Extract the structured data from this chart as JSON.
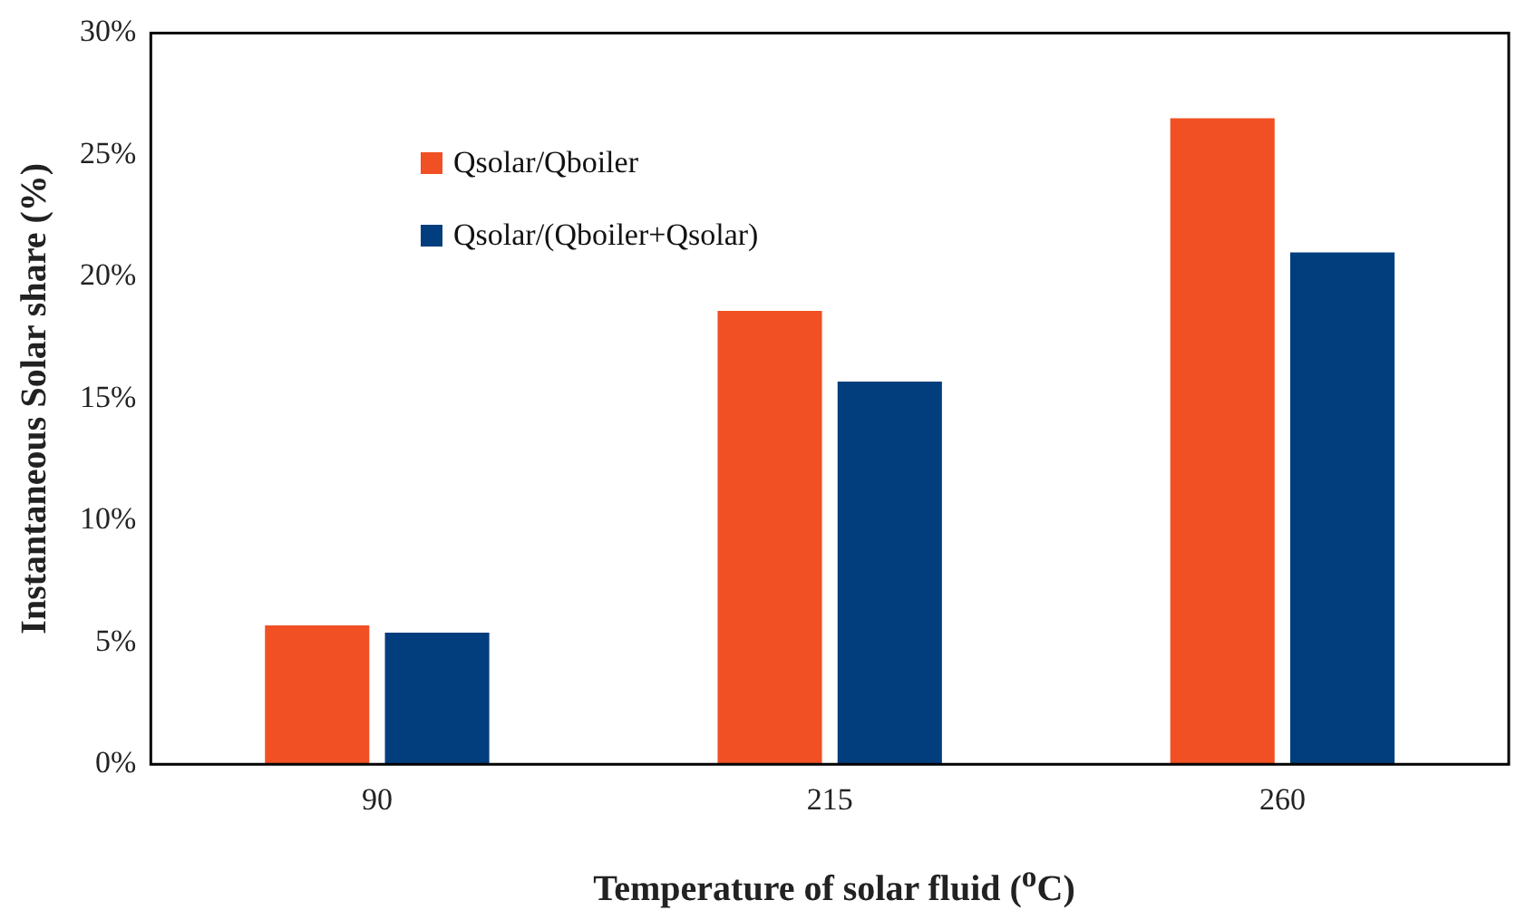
{
  "chart_data": {
    "type": "bar",
    "xlabel": "Temperature of solar fluid ($^{o}$C)",
    "ylabel": "Instantaneous Solar share (%)",
    "categories": [
      "90",
      "215",
      "260"
    ],
    "series": [
      {
        "name": "Qsolar/Qboiler",
        "color": "#f05023",
        "values": [
          5.7,
          18.6,
          26.5
        ]
      },
      {
        "name": "Qsolar/(Qboiler+Qsolar)",
        "color": "#023e7d",
        "values": [
          5.4,
          15.7,
          21.0
        ]
      }
    ],
    "ylim": [
      0,
      30
    ],
    "yticks": [
      {
        "value": 0,
        "label": "0%"
      },
      {
        "value": 5,
        "label": "5%"
      },
      {
        "value": 10,
        "label": "10%"
      },
      {
        "value": 15,
        "label": "15%"
      },
      {
        "value": 20,
        "label": "20%"
      },
      {
        "value": 25,
        "label": "25%"
      },
      {
        "value": 30,
        "label": "30%"
      }
    ],
    "grid": false,
    "legend": "top left"
  }
}
